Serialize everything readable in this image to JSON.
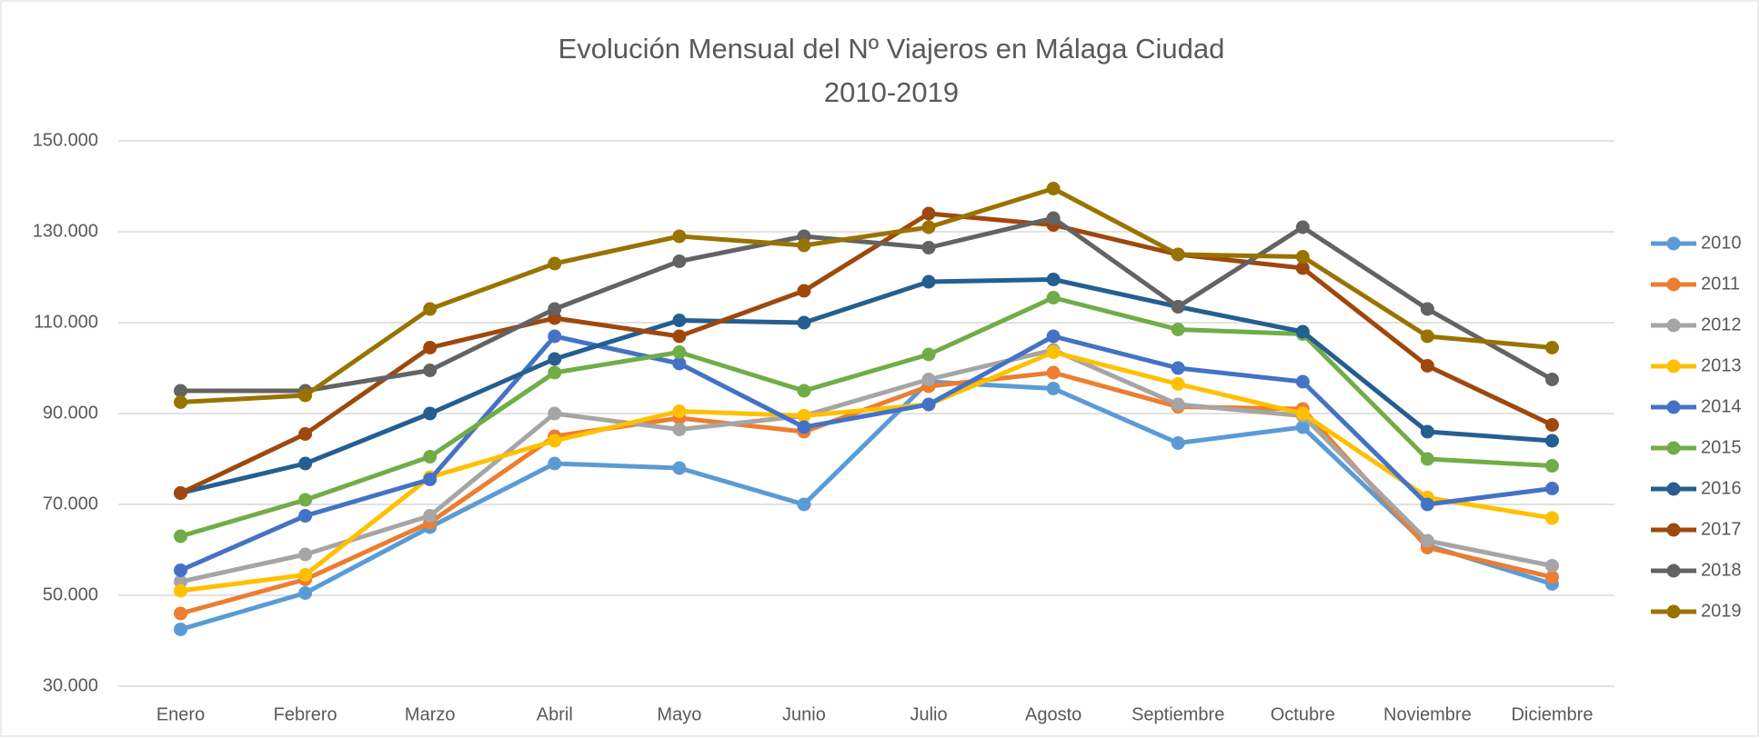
{
  "chart_data": {
    "type": "line",
    "title": "Evolución Mensual del Nº Viajeros en Málaga Ciudad",
    "subtitle": "2010-2019",
    "categories": [
      "Enero",
      "Febrero",
      "Marzo",
      "Abril",
      "Mayo",
      "Junio",
      "Julio",
      "Agosto",
      "Septiembre",
      "Octubre",
      "Noviembre",
      "Diciembre"
    ],
    "series": [
      {
        "name": "2010",
        "color": "#5b9bd5",
        "values": [
          42500,
          50500,
          65000,
          79000,
          78000,
          70000,
          97000,
          95500,
          83500,
          87000,
          61000,
          52500
        ]
      },
      {
        "name": "2011",
        "color": "#ed7d31",
        "values": [
          46000,
          53500,
          66000,
          85000,
          89000,
          86000,
          96000,
          99000,
          91500,
          91000,
          60500,
          54000
        ]
      },
      {
        "name": "2012",
        "color": "#a5a5a5",
        "values": [
          53000,
          59000,
          67500,
          90000,
          86500,
          89500,
          97500,
          104000,
          92000,
          89500,
          62000,
          56500
        ]
      },
      {
        "name": "2013",
        "color": "#ffc000",
        "values": [
          51000,
          54500,
          76000,
          84000,
          90500,
          89500,
          92000,
          103500,
          96500,
          90000,
          71500,
          67000
        ]
      },
      {
        "name": "2014",
        "color": "#4472c4",
        "values": [
          55500,
          67500,
          75500,
          107000,
          101000,
          87000,
          92000,
          107000,
          100000,
          97000,
          70000,
          73500
        ]
      },
      {
        "name": "2015",
        "color": "#70ad47",
        "values": [
          63000,
          71000,
          80500,
          99000,
          103500,
          95000,
          103000,
          115500,
          108500,
          107500,
          80000,
          78500
        ]
      },
      {
        "name": "2016",
        "color": "#255e91",
        "values": [
          72500,
          79000,
          90000,
          102000,
          110500,
          110000,
          119000,
          119500,
          113500,
          108000,
          86000,
          84000
        ]
      },
      {
        "name": "2017",
        "color": "#9e480e",
        "values": [
          72500,
          85500,
          104500,
          111000,
          107000,
          117000,
          134000,
          131500,
          125000,
          122000,
          100500,
          87500
        ]
      },
      {
        "name": "2018",
        "color": "#636363",
        "values": [
          95000,
          95000,
          99500,
          113000,
          123500,
          129000,
          126500,
          133000,
          113500,
          131000,
          113000,
          97500
        ]
      },
      {
        "name": "2019",
        "color": "#997300",
        "values": [
          92500,
          94000,
          113000,
          123000,
          129000,
          127000,
          131000,
          139500,
          125000,
          124500,
          107000,
          104500
        ]
      }
    ],
    "ylim": [
      30000,
      150000
    ],
    "yticks": [
      {
        "value": 30000,
        "label": "30.000"
      },
      {
        "value": 50000,
        "label": "50.000"
      },
      {
        "value": 70000,
        "label": "70.000"
      },
      {
        "value": 90000,
        "label": "90.000"
      },
      {
        "value": 110000,
        "label": "110.000"
      },
      {
        "value": 130000,
        "label": "130.000"
      },
      {
        "value": 150000,
        "label": "150.000"
      }
    ],
    "grid": true,
    "legend": "right"
  }
}
